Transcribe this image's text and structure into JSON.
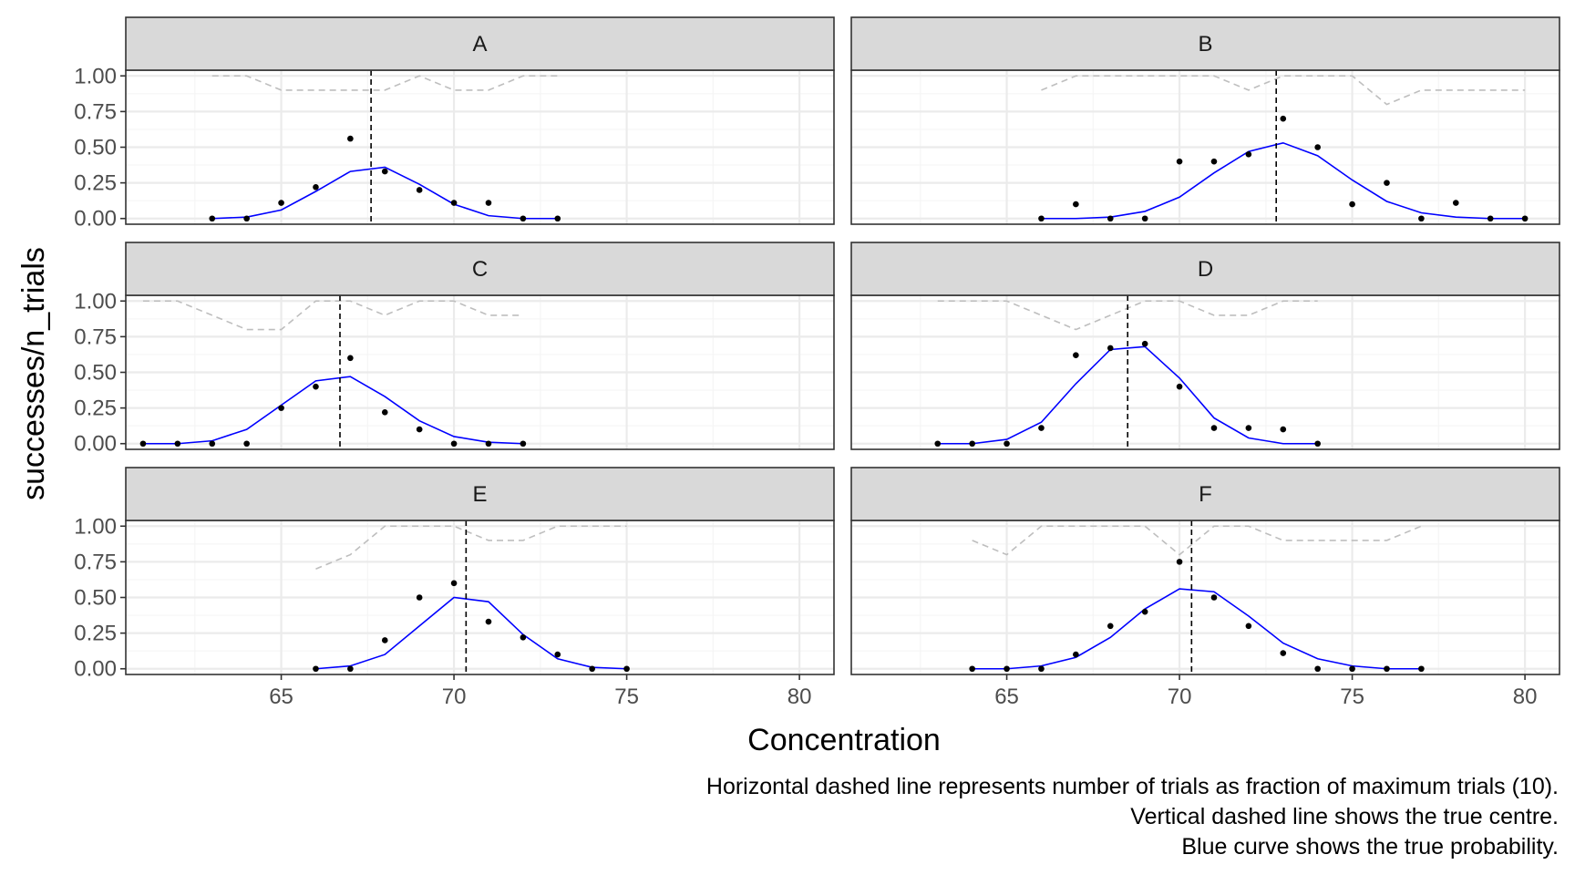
{
  "chart_data": {
    "type": "line",
    "facet_type": "faceted scatter with line overlays",
    "xlabel": "Concentration",
    "ylabel": "successes/n_trials",
    "xlim": [
      60.5,
      81
    ],
    "ylim": [
      -0.04,
      1.04
    ],
    "x_ticks": [
      65,
      70,
      75,
      80
    ],
    "y_ticks": [
      0,
      0.25,
      0.5,
      0.75,
      1.0
    ],
    "y_tick_labels": [
      "0.00",
      "0.25",
      "0.50",
      "0.75",
      "1.00"
    ],
    "grid": true,
    "theme": "bw",
    "colors": {
      "points": "#000000",
      "true_probability": "#0000ff",
      "trials_fraction": "#bebebe",
      "true_centre": "#000000",
      "strip_fill": "#d9d9d9",
      "panel_border": "#333333",
      "grid_major": "#ebebeb",
      "grid_minor": "#f5f5f5"
    },
    "panels": [
      {
        "label": "A",
        "true_centre": 67.6,
        "points": {
          "x": [
            63,
            64,
            65,
            66,
            67,
            68,
            69,
            70,
            71,
            72,
            73
          ],
          "y": [
            0.0,
            0.0,
            0.11,
            0.22,
            0.56,
            0.33,
            0.2,
            0.11,
            0.11,
            0.0,
            0.0
          ]
        },
        "true_probability": {
          "x": [
            63,
            64,
            65,
            66,
            67,
            68,
            69,
            70,
            71,
            72,
            73
          ],
          "y": [
            0.0,
            0.01,
            0.06,
            0.19,
            0.33,
            0.36,
            0.24,
            0.1,
            0.02,
            0.0,
            0.0
          ]
        },
        "trials_fraction": {
          "x": [
            63,
            64,
            65,
            66,
            67,
            68,
            69,
            70,
            71,
            72,
            73
          ],
          "y": [
            1.0,
            1.0,
            0.9,
            0.9,
            0.9,
            0.9,
            1.0,
            0.9,
            0.9,
            1.0,
            1.0
          ]
        }
      },
      {
        "label": "B",
        "true_centre": 72.8,
        "points": {
          "x": [
            66,
            67,
            68,
            69,
            70,
            71,
            72,
            73,
            74,
            75,
            76,
            77,
            78,
            79,
            80
          ],
          "y": [
            0.0,
            0.1,
            0.0,
            0.0,
            0.4,
            0.4,
            0.45,
            0.7,
            0.5,
            0.1,
            0.25,
            0.0,
            0.11,
            0.0,
            0.0
          ]
        },
        "true_probability": {
          "x": [
            66,
            67,
            68,
            69,
            70,
            71,
            72,
            73,
            74,
            75,
            76,
            77,
            78,
            79,
            80
          ],
          "y": [
            0.0,
            0.0,
            0.01,
            0.05,
            0.15,
            0.32,
            0.47,
            0.53,
            0.44,
            0.27,
            0.12,
            0.04,
            0.01,
            0.0,
            0.0
          ]
        },
        "trials_fraction": {
          "x": [
            66,
            67,
            68,
            69,
            70,
            71,
            72,
            73,
            74,
            75,
            76,
            77,
            78,
            79,
            80
          ],
          "y": [
            0.9,
            1.0,
            1.0,
            1.0,
            1.0,
            1.0,
            0.9,
            1.0,
            1.0,
            1.0,
            0.8,
            0.9,
            0.9,
            0.9,
            0.9
          ]
        }
      },
      {
        "label": "C",
        "true_centre": 66.7,
        "points": {
          "x": [
            61,
            62,
            63,
            64,
            65,
            66,
            67,
            68,
            69,
            70,
            71,
            72
          ],
          "y": [
            0.0,
            0.0,
            0.0,
            0.0,
            0.25,
            0.4,
            0.6,
            0.22,
            0.1,
            0.0,
            0.0,
            0.0
          ]
        },
        "true_probability": {
          "x": [
            61,
            62,
            63,
            64,
            65,
            66,
            67,
            68,
            69,
            70,
            71,
            72
          ],
          "y": [
            0.0,
            0.0,
            0.02,
            0.1,
            0.27,
            0.44,
            0.47,
            0.33,
            0.16,
            0.05,
            0.01,
            0.0
          ]
        },
        "trials_fraction": {
          "x": [
            61,
            62,
            63,
            64,
            65,
            66,
            67,
            68,
            69,
            70,
            71,
            72
          ],
          "y": [
            1.0,
            1.0,
            0.9,
            0.8,
            0.8,
            1.0,
            1.0,
            0.9,
            1.0,
            1.0,
            0.9,
            0.9
          ]
        }
      },
      {
        "label": "D",
        "true_centre": 68.5,
        "points": {
          "x": [
            63,
            64,
            65,
            66,
            67,
            68,
            69,
            70,
            71,
            72,
            73,
            74
          ],
          "y": [
            0.0,
            0.0,
            0.0,
            0.11,
            0.62,
            0.67,
            0.7,
            0.4,
            0.11,
            0.11,
            0.1,
            0.0
          ]
        },
        "true_probability": {
          "x": [
            63,
            64,
            65,
            66,
            67,
            68,
            69,
            70,
            71,
            72,
            73,
            74
          ],
          "y": [
            0.0,
            0.0,
            0.03,
            0.15,
            0.42,
            0.66,
            0.68,
            0.46,
            0.18,
            0.04,
            0.0,
            0.0
          ]
        },
        "trials_fraction": {
          "x": [
            63,
            64,
            65,
            66,
            67,
            68,
            69,
            70,
            71,
            72,
            73,
            74
          ],
          "y": [
            1.0,
            1.0,
            1.0,
            0.9,
            0.8,
            0.9,
            1.0,
            1.0,
            0.9,
            0.9,
            1.0,
            1.0
          ]
        }
      },
      {
        "label": "E",
        "true_centre": 70.35,
        "points": {
          "x": [
            66,
            67,
            68,
            69,
            70,
            71,
            72,
            73,
            74,
            75
          ],
          "y": [
            0.0,
            0.0,
            0.2,
            0.5,
            0.6,
            0.33,
            0.22,
            0.1,
            0.0,
            0.0
          ]
        },
        "true_probability": {
          "x": [
            66,
            67,
            68,
            69,
            70,
            71,
            72,
            73,
            74,
            75
          ],
          "y": [
            0.0,
            0.02,
            0.1,
            0.3,
            0.5,
            0.47,
            0.24,
            0.07,
            0.01,
            0.0
          ]
        },
        "trials_fraction": {
          "x": [
            66,
            67,
            68,
            69,
            70,
            71,
            72,
            73,
            74,
            75
          ],
          "y": [
            0.7,
            0.8,
            1.0,
            1.0,
            1.0,
            0.9,
            0.9,
            1.0,
            1.0,
            1.0
          ]
        }
      },
      {
        "label": "F",
        "true_centre": 70.35,
        "points": {
          "x": [
            64,
            65,
            66,
            67,
            68,
            69,
            70,
            71,
            72,
            73,
            74,
            75,
            76,
            77
          ],
          "y": [
            0.0,
            0.0,
            0.0,
            0.1,
            0.3,
            0.4,
            0.75,
            0.5,
            0.3,
            0.11,
            0.0,
            0.0,
            0.0,
            0.0
          ]
        },
        "true_probability": {
          "x": [
            64,
            65,
            66,
            67,
            68,
            69,
            70,
            71,
            72,
            73,
            74,
            75,
            76,
            77
          ],
          "y": [
            0.0,
            0.0,
            0.02,
            0.08,
            0.22,
            0.42,
            0.56,
            0.54,
            0.37,
            0.18,
            0.07,
            0.02,
            0.0,
            0.0
          ]
        },
        "trials_fraction": {
          "x": [
            64,
            65,
            66,
            67,
            68,
            69,
            70,
            71,
            72,
            73,
            74,
            75,
            76,
            77
          ],
          "y": [
            0.9,
            0.8,
            1.0,
            1.0,
            1.0,
            1.0,
            0.8,
            1.0,
            1.0,
            0.9,
            0.9,
            0.9,
            0.9,
            1.0
          ]
        }
      }
    ],
    "caption": [
      "Horizontal dashed line represents number of trials as fraction of maximum trials (10).",
      "Vertical dashed line shows the true centre.",
      "Blue curve shows the true probability."
    ]
  }
}
